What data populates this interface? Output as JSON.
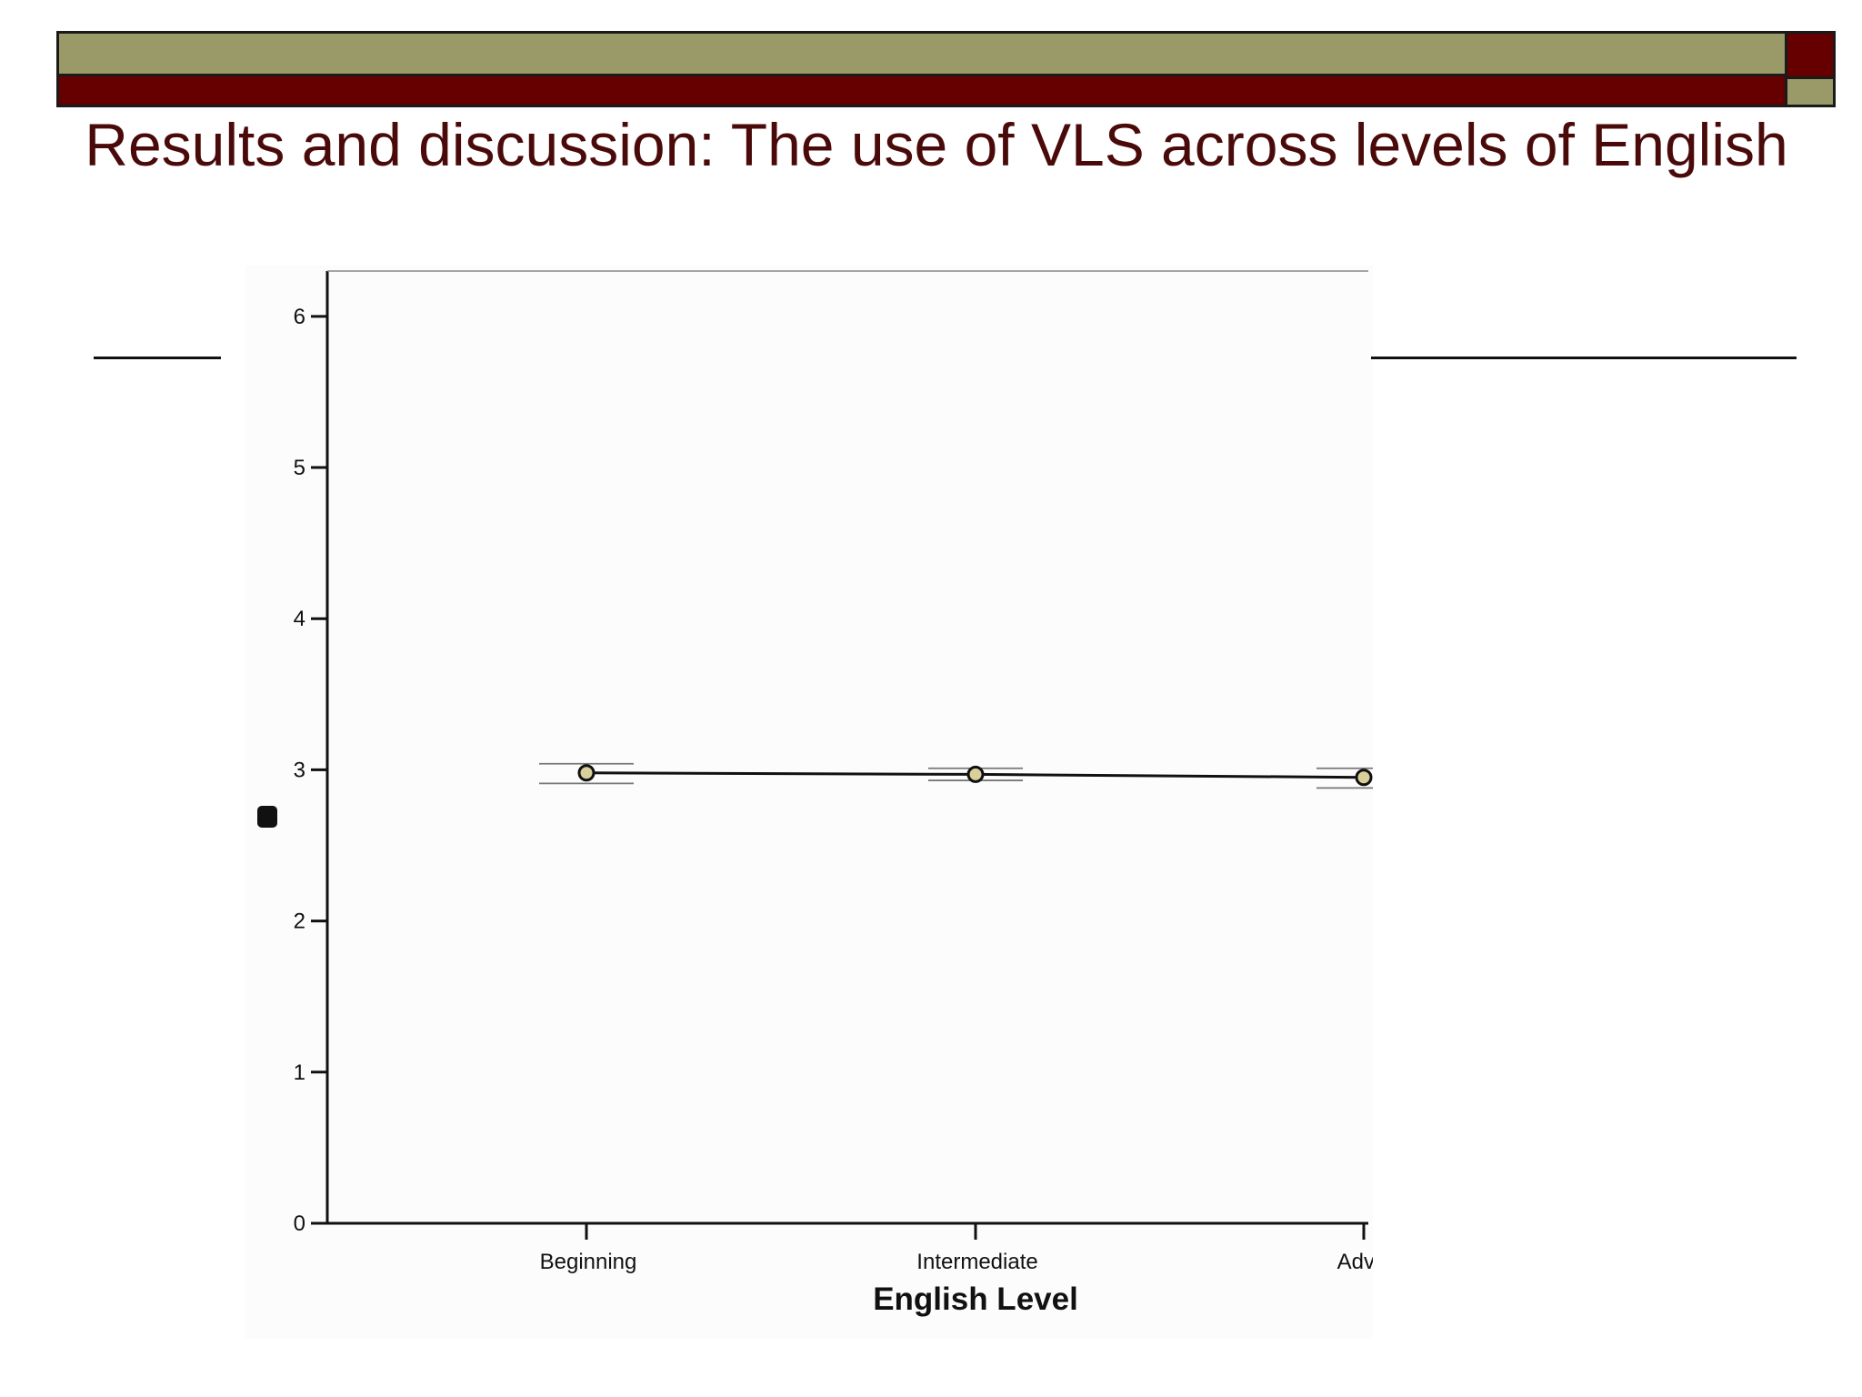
{
  "slide": {
    "title": "Results and discussion: The use of VLS across levels of English",
    "colors": {
      "olive": "#9a9a68",
      "maroon": "#660000",
      "title_text": "#4a0a0a"
    }
  },
  "chart_data": {
    "type": "line",
    "xlabel": "English Level",
    "ylabel": "",
    "categories": [
      "Beginning",
      "Intermediate",
      "Advar"
    ],
    "series": [
      {
        "values": [
          2.98,
          2.97,
          2.95
        ],
        "error_low": [
          2.91,
          2.93,
          2.88
        ],
        "error_high": [
          3.04,
          3.01,
          3.01
        ]
      }
    ],
    "ylim": [
      0,
      6.3
    ],
    "yticks": [
      0,
      1,
      2,
      3,
      4,
      5,
      6
    ],
    "grid": false,
    "legend": "none",
    "marker_color": "#d8cf9a"
  }
}
